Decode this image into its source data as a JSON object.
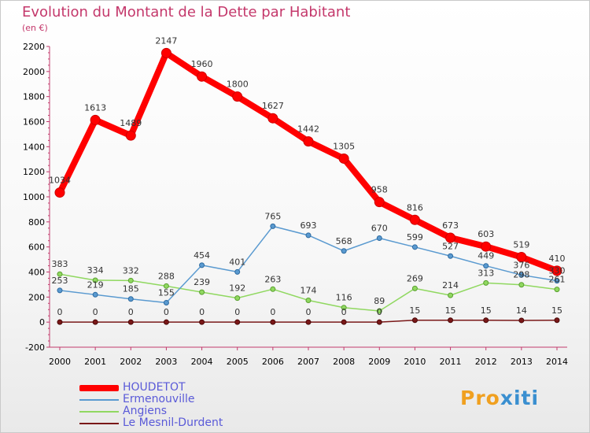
{
  "chart_data": {
    "type": "line",
    "title": "Evolution du Montant de la Dette par Habitant",
    "subtitle": "(en €)",
    "x": [
      "2000",
      "2001",
      "2002",
      "2003",
      "2004",
      "2005",
      "2006",
      "2007",
      "2008",
      "2009",
      "2010",
      "2011",
      "2012",
      "2013",
      "2014"
    ],
    "ylim": [
      -200,
      2200
    ],
    "yticks": [
      -200,
      0,
      200,
      400,
      600,
      800,
      1000,
      1200,
      1400,
      1600,
      1800,
      2000,
      2200
    ],
    "grid": false,
    "legend_position": "bottom-left",
    "series": [
      {
        "name": "HOUDETOT",
        "color": "#ff0000",
        "values": [
          1034,
          1613,
          1489,
          2147,
          1960,
          1800,
          1627,
          1442,
          1305,
          958,
          816,
          673,
          603,
          519,
          410
        ],
        "labels": [
          "1034",
          "1613",
          "1489",
          "2147",
          "1960",
          "1800",
          "1627",
          "1442",
          "1305",
          "958",
          "816",
          "673",
          "603",
          "519",
          "410"
        ]
      },
      {
        "name": "Ermenouville",
        "color": "#5a9ad0",
        "values": [
          253,
          219,
          185,
          155,
          454,
          401,
          765,
          693,
          568,
          670,
          599,
          527,
          449,
          376,
          330
        ],
        "labels": [
          "253",
          "219",
          "185",
          "155",
          "454",
          "401",
          "765",
          "693",
          "568",
          "670",
          "599",
          "527",
          "449",
          "376",
          "330"
        ]
      },
      {
        "name": "Angiens",
        "color": "#90d860",
        "values": [
          383,
          334,
          332,
          288,
          239,
          192,
          263,
          174,
          116,
          89,
          269,
          214,
          313,
          298,
          261
        ],
        "labels": [
          "383",
          "334",
          "332",
          "288",
          "239",
          "192",
          "263",
          "174",
          "116",
          "89",
          "269",
          "214",
          "313",
          "298",
          "261"
        ]
      },
      {
        "name": "Le Mesnil-Durdent",
        "color": "#7a1818",
        "values": [
          0,
          0,
          0,
          0,
          0,
          0,
          0,
          0,
          0,
          0,
          15,
          15,
          15,
          14,
          15
        ],
        "labels": [
          "0",
          "0",
          "0",
          "0",
          "0",
          "0",
          "0",
          "0",
          "0",
          "0",
          "15",
          "15",
          "15",
          "14",
          "15"
        ]
      }
    ]
  },
  "brand": {
    "prefix": "Pro",
    "suffix": "xiti"
  }
}
